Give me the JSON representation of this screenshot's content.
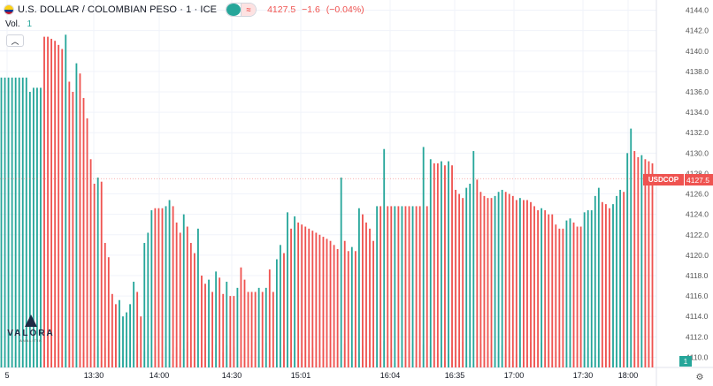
{
  "header": {
    "title": "U.S. DOLLAR / COLOMBIAN PESO · 1 · ICE",
    "price": "4127.5",
    "change": "−1.6",
    "change_pct": "(−0.04%)",
    "flag_icon": "colombia-flag-icon"
  },
  "volume": {
    "label": "Vol.",
    "value": "1"
  },
  "last_price_badge": {
    "symbol": "USDCOP",
    "price": "4127.5"
  },
  "volume_badge": "1",
  "logo": {
    "name": "VALORA",
    "tagline": "ANALITIK"
  },
  "colors": {
    "up": "#26a69a",
    "down": "#ef5350",
    "up_light": "#b8e3df",
    "down_light": "#f7c3c2"
  },
  "chart_data": {
    "type": "bar",
    "ylim": [
      4109,
      4145
    ],
    "y_ticks": [
      "4144.0",
      "4142.0",
      "4140.0",
      "4138.0",
      "4136.0",
      "4134.0",
      "4132.0",
      "4130.0",
      "4128.0",
      "4126.0",
      "4124.0",
      "4122.0",
      "4120.0",
      "4118.0",
      "4116.0",
      "4114.0",
      "4112.0",
      "4110.0"
    ],
    "x_ticks": [
      "5",
      "13:30",
      "14:00",
      "14:30",
      "15:01",
      "16:04",
      "16:35",
      "17:00",
      "17:30",
      "18:00"
    ],
    "bars": [
      [
        4137.4,
        "up"
      ],
      [
        4137.4,
        "up"
      ],
      [
        4137.4,
        "up"
      ],
      [
        4137.4,
        "up"
      ],
      [
        4137.4,
        "up"
      ],
      [
        4137.4,
        "up"
      ],
      [
        4137.4,
        "up"
      ],
      [
        4137.4,
        "up"
      ],
      [
        4136.0,
        "up"
      ],
      [
        4136.4,
        "up"
      ],
      [
        4136.4,
        "up"
      ],
      [
        4136.4,
        "up"
      ],
      [
        4141.4,
        "down"
      ],
      [
        4141.4,
        "down"
      ],
      [
        4141.2,
        "down"
      ],
      [
        4141.0,
        "down"
      ],
      [
        4140.6,
        "down"
      ],
      [
        4140.2,
        "down"
      ],
      [
        4141.6,
        "up"
      ],
      [
        4137.0,
        "down"
      ],
      [
        4136.0,
        "down"
      ],
      [
        4138.8,
        "up"
      ],
      [
        4137.8,
        "down"
      ],
      [
        4135.4,
        "down"
      ],
      [
        4133.4,
        "down"
      ],
      [
        4129.4,
        "down"
      ],
      [
        4127.0,
        "down"
      ],
      [
        4127.6,
        "up"
      ],
      [
        4127.2,
        "down"
      ],
      [
        4121.2,
        "down"
      ],
      [
        4119.8,
        "down"
      ],
      [
        4116.2,
        "down"
      ],
      [
        4115.2,
        "down"
      ],
      [
        4115.6,
        "up"
      ],
      [
        4114.0,
        "up"
      ],
      [
        4114.4,
        "up"
      ],
      [
        4115.2,
        "up"
      ],
      [
        4117.4,
        "up"
      ],
      [
        4116.4,
        "down"
      ],
      [
        4114.0,
        "down"
      ],
      [
        4121.2,
        "up"
      ],
      [
        4122.2,
        "up"
      ],
      [
        4124.4,
        "up"
      ],
      [
        4124.6,
        "down"
      ],
      [
        4124.6,
        "down"
      ],
      [
        4124.6,
        "down"
      ],
      [
        4124.8,
        "up"
      ],
      [
        4125.4,
        "up"
      ],
      [
        4124.8,
        "down"
      ],
      [
        4123.2,
        "down"
      ],
      [
        4122.2,
        "down"
      ],
      [
        4124.0,
        "up"
      ],
      [
        4122.8,
        "down"
      ],
      [
        4121.2,
        "down"
      ],
      [
        4120.2,
        "down"
      ],
      [
        4122.6,
        "up"
      ],
      [
        4118.0,
        "down"
      ],
      [
        4117.2,
        "down"
      ],
      [
        4117.6,
        "up"
      ],
      [
        4116.4,
        "down"
      ],
      [
        4118.4,
        "up"
      ],
      [
        4117.8,
        "down"
      ],
      [
        4116.2,
        "down"
      ],
      [
        4117.4,
        "up"
      ],
      [
        4116.0,
        "down"
      ],
      [
        4116.0,
        "down"
      ],
      [
        4116.8,
        "up"
      ],
      [
        4118.8,
        "down"
      ],
      [
        4117.6,
        "down"
      ],
      [
        4116.4,
        "down"
      ],
      [
        4116.4,
        "down"
      ],
      [
        4116.4,
        "down"
      ],
      [
        4116.8,
        "up"
      ],
      [
        4116.4,
        "down"
      ],
      [
        4116.8,
        "up"
      ],
      [
        4118.6,
        "down"
      ],
      [
        4116.4,
        "down"
      ],
      [
        4119.6,
        "up"
      ],
      [
        4121.0,
        "up"
      ],
      [
        4120.2,
        "down"
      ],
      [
        4124.2,
        "up"
      ],
      [
        4122.6,
        "down"
      ],
      [
        4123.8,
        "up"
      ],
      [
        4123.2,
        "down"
      ],
      [
        4123.0,
        "down"
      ],
      [
        4122.8,
        "down"
      ],
      [
        4122.6,
        "down"
      ],
      [
        4122.4,
        "down"
      ],
      [
        4122.2,
        "down"
      ],
      [
        4122.0,
        "down"
      ],
      [
        4121.8,
        "down"
      ],
      [
        4121.6,
        "down"
      ],
      [
        4121.4,
        "down"
      ],
      [
        4121.0,
        "down"
      ],
      [
        4120.6,
        "down"
      ],
      [
        4127.6,
        "up"
      ],
      [
        4121.4,
        "down"
      ],
      [
        4120.4,
        "down"
      ],
      [
        4120.8,
        "up"
      ],
      [
        4120.4,
        "down"
      ],
      [
        4124.6,
        "up"
      ],
      [
        4124.0,
        "down"
      ],
      [
        4123.2,
        "down"
      ],
      [
        4122.6,
        "down"
      ],
      [
        4121.4,
        "down"
      ],
      [
        4124.8,
        "up"
      ],
      [
        4124.8,
        "down"
      ],
      [
        4130.4,
        "up"
      ],
      [
        4124.8,
        "down"
      ],
      [
        4124.8,
        "down"
      ],
      [
        4124.8,
        "up"
      ],
      [
        4124.8,
        "down"
      ],
      [
        4124.8,
        "up"
      ],
      [
        4124.8,
        "down"
      ],
      [
        4124.8,
        "down"
      ],
      [
        4124.8,
        "up"
      ],
      [
        4124.8,
        "down"
      ],
      [
        4124.8,
        "down"
      ],
      [
        4130.6,
        "up"
      ],
      [
        4124.8,
        "down"
      ],
      [
        4129.4,
        "up"
      ],
      [
        4129.0,
        "down"
      ],
      [
        4129.0,
        "down"
      ],
      [
        4129.2,
        "up"
      ],
      [
        4128.8,
        "down"
      ],
      [
        4129.2,
        "up"
      ],
      [
        4128.8,
        "down"
      ],
      [
        4126.4,
        "down"
      ],
      [
        4126.0,
        "down"
      ],
      [
        4125.6,
        "down"
      ],
      [
        4126.6,
        "up"
      ],
      [
        4127.0,
        "up"
      ],
      [
        4130.2,
        "up"
      ],
      [
        4127.4,
        "down"
      ],
      [
        4126.2,
        "down"
      ],
      [
        4125.8,
        "down"
      ],
      [
        4125.6,
        "down"
      ],
      [
        4125.6,
        "down"
      ],
      [
        4125.8,
        "up"
      ],
      [
        4126.2,
        "up"
      ],
      [
        4126.4,
        "up"
      ],
      [
        4126.2,
        "down"
      ],
      [
        4126.0,
        "down"
      ],
      [
        4125.8,
        "down"
      ],
      [
        4125.4,
        "down"
      ],
      [
        4125.6,
        "up"
      ],
      [
        4125.4,
        "down"
      ],
      [
        4125.4,
        "down"
      ],
      [
        4125.2,
        "down"
      ],
      [
        4124.8,
        "down"
      ],
      [
        4124.4,
        "down"
      ],
      [
        4124.6,
        "up"
      ],
      [
        4124.4,
        "down"
      ],
      [
        4124.0,
        "down"
      ],
      [
        4124.0,
        "down"
      ],
      [
        4123.0,
        "down"
      ],
      [
        4122.6,
        "down"
      ],
      [
        4122.6,
        "down"
      ],
      [
        4123.4,
        "up"
      ],
      [
        4123.6,
        "up"
      ],
      [
        4123.2,
        "down"
      ],
      [
        4122.8,
        "down"
      ],
      [
        4122.8,
        "down"
      ],
      [
        4124.2,
        "up"
      ],
      [
        4124.4,
        "up"
      ],
      [
        4124.4,
        "up"
      ],
      [
        4125.8,
        "up"
      ],
      [
        4126.6,
        "up"
      ],
      [
        4125.2,
        "down"
      ],
      [
        4125.0,
        "down"
      ],
      [
        4124.6,
        "down"
      ],
      [
        4125.0,
        "up"
      ],
      [
        4125.8,
        "up"
      ],
      [
        4126.4,
        "up"
      ],
      [
        4126.2,
        "down"
      ],
      [
        4130.0,
        "up"
      ],
      [
        4132.4,
        "up"
      ],
      [
        4130.2,
        "down"
      ],
      [
        4129.6,
        "down"
      ],
      [
        4129.8,
        "up"
      ],
      [
        4129.4,
        "down"
      ],
      [
        4129.2,
        "down"
      ],
      [
        4129.0,
        "down"
      ]
    ]
  }
}
